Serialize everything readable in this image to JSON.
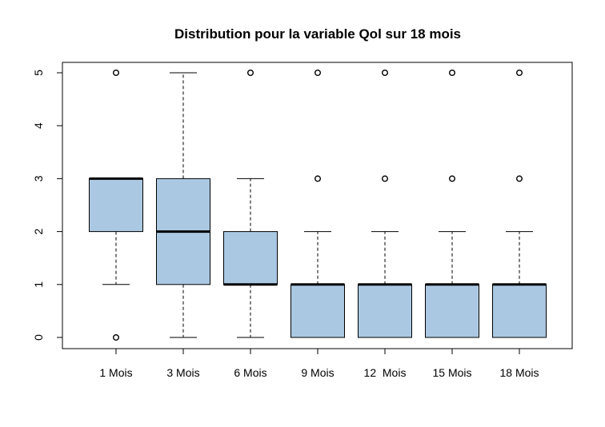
{
  "chart_data": {
    "type": "boxplot",
    "title": "Distribution pour la variable Qol sur 18 mois",
    "xlabel": "",
    "ylabel": "",
    "ylim": [
      -0.2,
      5.2
    ],
    "yticks": [
      0,
      1,
      2,
      3,
      4,
      5
    ],
    "grid": false,
    "box_color": "#abc8e2",
    "categories": [
      "1 Mois",
      "3 Mois",
      "6 Mois",
      "9 Mois",
      "12  Mois",
      "15 Mois",
      "18 Mois"
    ],
    "boxes": [
      {
        "whisker_low": 1,
        "q1": 2,
        "median": 3,
        "q3": 3,
        "whisker_high": 3,
        "outliers": [
          0,
          5
        ]
      },
      {
        "whisker_low": 0,
        "q1": 1,
        "median": 2,
        "q3": 3,
        "whisker_high": 5,
        "outliers": []
      },
      {
        "whisker_low": 0,
        "q1": 1,
        "median": 1,
        "q3": 2,
        "whisker_high": 3,
        "outliers": [
          5
        ]
      },
      {
        "whisker_low": 0,
        "q1": 0,
        "median": 1,
        "q3": 1,
        "whisker_high": 2,
        "outliers": [
          3,
          5
        ]
      },
      {
        "whisker_low": 0,
        "q1": 0,
        "median": 1,
        "q3": 1,
        "whisker_high": 2,
        "outliers": [
          3,
          5
        ]
      },
      {
        "whisker_low": 0,
        "q1": 0,
        "median": 1,
        "q3": 1,
        "whisker_high": 2,
        "outliers": [
          3,
          5
        ]
      },
      {
        "whisker_low": 0,
        "q1": 0,
        "median": 1,
        "q3": 1,
        "whisker_high": 2,
        "outliers": [
          3,
          5
        ]
      }
    ]
  }
}
